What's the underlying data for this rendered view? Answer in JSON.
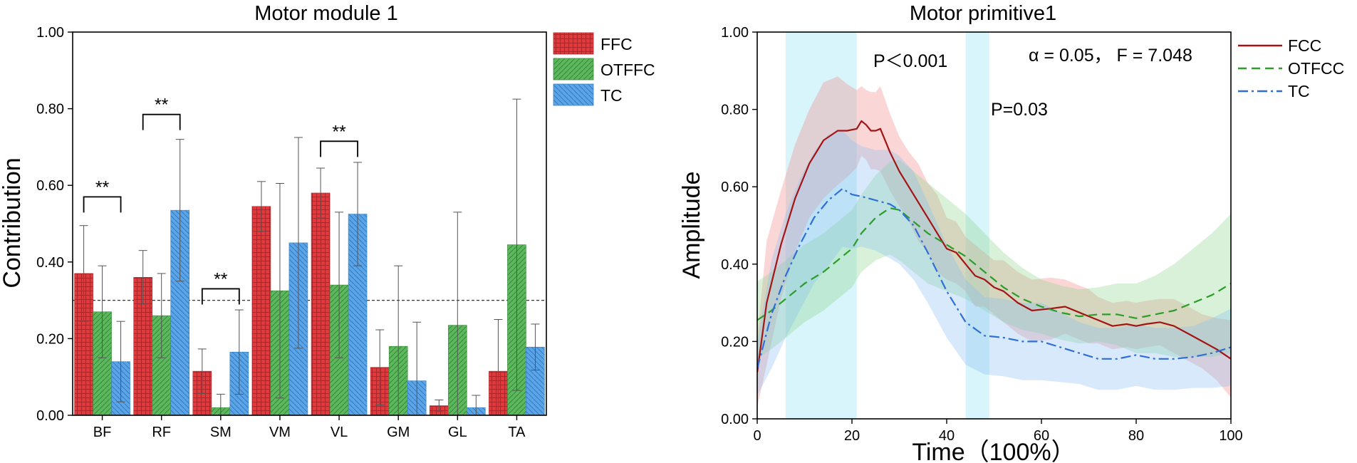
{
  "colors": {
    "ffc": "#e5383b",
    "otffc": "#5cb85c",
    "tc": "#5aa5e8",
    "fcc_line": "#a31515",
    "otfcc_line": "#2a9d2a",
    "tc_line": "#2f6fd6",
    "highlight": "#b8ecf7"
  },
  "chart_data": [
    {
      "type": "bar",
      "title": "Motor module 1",
      "xlabel": "",
      "ylabel": "Contribution",
      "ylim": [
        0,
        1
      ],
      "yticks": [
        "0.00",
        "0.20",
        "0.40",
        "0.60",
        "0.80",
        "1.00"
      ],
      "categories": [
        "BF",
        "RF",
        "SM",
        "VM",
        "VL",
        "GM",
        "GL",
        "TA"
      ],
      "reference_line": 0.3,
      "series": [
        {
          "name": "FFC",
          "values": [
            0.37,
            0.36,
            0.115,
            0.545,
            0.58,
            0.125,
            0.025,
            0.115
          ],
          "errors": [
            0.125,
            0.07,
            0.058,
            0.065,
            0.065,
            0.098,
            0.015,
            0.135
          ]
        },
        {
          "name": "OTFFC",
          "values": [
            0.27,
            0.26,
            0.02,
            0.325,
            0.34,
            0.18,
            0.235,
            0.445
          ],
          "errors": [
            0.12,
            0.11,
            0.035,
            0.28,
            0.19,
            0.21,
            0.295,
            0.38
          ]
        },
        {
          "name": "TC",
          "values": [
            0.14,
            0.535,
            0.165,
            0.45,
            0.525,
            0.09,
            0.02,
            0.178
          ],
          "errors": [
            0.105,
            0.185,
            0.11,
            0.275,
            0.135,
            0.153,
            0.032,
            0.06
          ]
        }
      ],
      "significance": [
        {
          "category": "BF",
          "label": "**",
          "level": 0.57
        },
        {
          "category": "RF",
          "label": "**",
          "level": 0.785
        },
        {
          "category": "SM",
          "label": "**",
          "level": 0.33
        },
        {
          "category": "VL",
          "label": "**",
          "level": 0.715
        }
      ],
      "legend": [
        "FFC",
        "OTFFC",
        "TC"
      ],
      "legend_position": "outside-right-top"
    },
    {
      "type": "line",
      "title": "Motor primitive1",
      "xlabel": "Time（100%）",
      "ylabel": "Amplitude",
      "xlim": [
        0,
        100
      ],
      "ylim": [
        0,
        1
      ],
      "xticks": [
        "0",
        "20",
        "40",
        "60",
        "80",
        "100"
      ],
      "yticks": [
        "0.00",
        "0.20",
        "0.40",
        "0.60",
        "0.80",
        "1.00"
      ],
      "highlights": [
        [
          6,
          21
        ],
        [
          44,
          49
        ]
      ],
      "annotations": [
        "P＜0.001",
        "P=0.03",
        "α = 0.05， F = 7.048"
      ],
      "legend": [
        "FCC",
        "OTFCC",
        "TC"
      ],
      "legend_position": "top-right",
      "series": [
        {
          "name": "FCC",
          "x": [
            0,
            2,
            5,
            8,
            11,
            14,
            17,
            19,
            21,
            22,
            23,
            24,
            25,
            26,
            28,
            30,
            32,
            34,
            36,
            38,
            40,
            42,
            44,
            46,
            48,
            50,
            52,
            55,
            58,
            62,
            65,
            68,
            70,
            72,
            75,
            78,
            80,
            82,
            85,
            88,
            91,
            94,
            97,
            100
          ],
          "y": [
            0.12,
            0.3,
            0.45,
            0.57,
            0.66,
            0.72,
            0.745,
            0.745,
            0.75,
            0.77,
            0.76,
            0.745,
            0.745,
            0.75,
            0.69,
            0.64,
            0.6,
            0.56,
            0.52,
            0.48,
            0.44,
            0.43,
            0.4,
            0.37,
            0.36,
            0.34,
            0.33,
            0.3,
            0.28,
            0.285,
            0.29,
            0.275,
            0.265,
            0.255,
            0.24,
            0.245,
            0.24,
            0.245,
            0.25,
            0.24,
            0.22,
            0.2,
            0.18,
            0.155
          ],
          "band": [
            0.09,
            0.16,
            0.14,
            0.14,
            0.14,
            0.15,
            0.14,
            0.12,
            0.1,
            0.09,
            0.09,
            0.1,
            0.1,
            0.11,
            0.1,
            0.09,
            0.09,
            0.1,
            0.09,
            0.1,
            0.08,
            0.08,
            0.07,
            0.08,
            0.07,
            0.07,
            0.08,
            0.08,
            0.08,
            0.08,
            0.07,
            0.07,
            0.07,
            0.06,
            0.06,
            0.06,
            0.06,
            0.06,
            0.06,
            0.07,
            0.07,
            0.07,
            0.08,
            0.1
          ]
        },
        {
          "name": "OTFCC",
          "x": [
            0,
            3,
            6,
            10,
            14,
            18,
            20,
            22,
            25,
            28,
            30,
            33,
            36,
            40,
            44,
            48,
            52,
            56,
            60,
            64,
            68,
            72,
            76,
            80,
            84,
            88,
            92,
            96,
            100
          ],
          "y": [
            0.255,
            0.28,
            0.31,
            0.35,
            0.38,
            0.42,
            0.44,
            0.48,
            0.52,
            0.545,
            0.54,
            0.51,
            0.48,
            0.45,
            0.42,
            0.38,
            0.34,
            0.31,
            0.29,
            0.275,
            0.265,
            0.27,
            0.27,
            0.26,
            0.27,
            0.28,
            0.3,
            0.32,
            0.35
          ],
          "band": [
            0.1,
            0.1,
            0.1,
            0.1,
            0.1,
            0.1,
            0.1,
            0.1,
            0.11,
            0.12,
            0.13,
            0.13,
            0.13,
            0.12,
            0.11,
            0.1,
            0.09,
            0.08,
            0.07,
            0.07,
            0.07,
            0.07,
            0.08,
            0.09,
            0.1,
            0.12,
            0.14,
            0.16,
            0.18
          ]
        },
        {
          "name": "TC",
          "x": [
            0,
            3,
            6,
            9,
            12,
            15,
            18,
            20,
            22,
            25,
            28,
            30,
            33,
            36,
            40,
            44,
            48,
            52,
            56,
            60,
            64,
            68,
            72,
            76,
            80,
            84,
            88,
            92,
            96,
            100
          ],
          "y": [
            0.13,
            0.27,
            0.37,
            0.45,
            0.52,
            0.565,
            0.595,
            0.58,
            0.575,
            0.565,
            0.555,
            0.54,
            0.5,
            0.43,
            0.33,
            0.25,
            0.215,
            0.21,
            0.2,
            0.2,
            0.185,
            0.17,
            0.155,
            0.155,
            0.165,
            0.155,
            0.155,
            0.16,
            0.17,
            0.185
          ],
          "band": [
            0.07,
            0.14,
            0.16,
            0.17,
            0.17,
            0.17,
            0.15,
            0.14,
            0.13,
            0.13,
            0.14,
            0.14,
            0.14,
            0.13,
            0.12,
            0.11,
            0.1,
            0.1,
            0.1,
            0.1,
            0.09,
            0.08,
            0.08,
            0.08,
            0.08,
            0.08,
            0.08,
            0.08,
            0.09,
            0.1
          ]
        }
      ]
    }
  ]
}
